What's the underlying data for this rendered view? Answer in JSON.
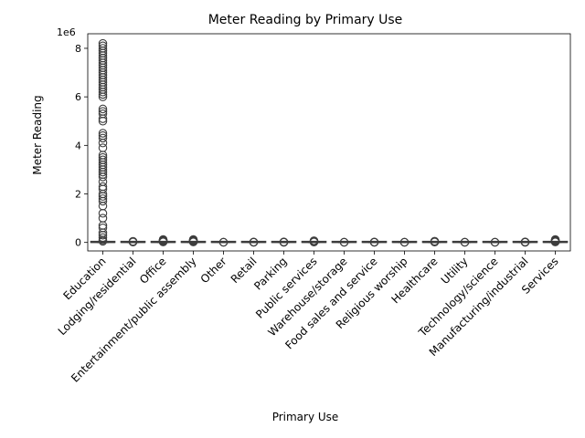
{
  "chart_data": {
    "type": "box",
    "title": "Meter Reading by Primary Use",
    "xlabel": "Primary Use",
    "ylabel": "Meter Reading",
    "y_offset_label": "1e6",
    "ylim": [
      -350000,
      8600000
    ],
    "yticks": [
      0,
      2000000,
      4000000,
      6000000,
      8000000
    ],
    "ytick_labels": [
      "0",
      "2",
      "4",
      "6",
      "8"
    ],
    "grid": false,
    "categories": [
      "Education",
      "Lodging/residential",
      "Office",
      "Entertainment/public assembly",
      "Other",
      "Retail",
      "Parking",
      "Public services",
      "Warehouse/storage",
      "Food sales and service",
      "Religious worship",
      "Healthcare",
      "Utility",
      "Technology/science",
      "Manufacturing/industrial",
      "Services"
    ],
    "series_color": "#4c72b0",
    "edge_color": "#3d3d3d",
    "boxes": [
      {
        "category": "Education",
        "q1": 0,
        "median": 0,
        "q3": 3000,
        "whisker_low": 0,
        "whisker_high": 7000,
        "outliers": [
          8200000,
          8100000,
          8000000,
          7900000,
          7800000,
          7700000,
          7600000,
          7500000,
          7400000,
          7300000,
          7200000,
          7100000,
          7000000,
          6900000,
          6800000,
          6700000,
          6600000,
          6500000,
          6400000,
          6300000,
          6200000,
          6100000,
          6000000,
          5500000,
          5400000,
          5300000,
          5100000,
          5000000,
          4500000,
          4400000,
          4300000,
          4100000,
          3900000,
          3600000,
          3500000,
          3400000,
          3300000,
          3200000,
          3100000,
          3000000,
          2900000,
          2800000,
          2700000,
          2500000,
          2300000,
          2200000,
          2000000,
          1900000,
          1800000,
          1700000,
          1500000,
          1200000,
          1000000,
          700000,
          600000,
          400000,
          300000,
          200000,
          100000,
          50000
        ]
      },
      {
        "category": "Lodging/residential",
        "q1": 0,
        "median": 0,
        "q3": 800,
        "whisker_low": 0,
        "whisker_high": 2000,
        "outliers": [
          15000,
          30000,
          45000
        ]
      },
      {
        "category": "Office",
        "q1": 0,
        "median": 0,
        "q3": 1500,
        "whisker_low": 0,
        "whisker_high": 3500,
        "outliers": [
          20000,
          40000,
          60000,
          80000,
          100000,
          120000
        ]
      },
      {
        "category": "Entertainment/public assembly",
        "q1": 0,
        "median": 0,
        "q3": 1500,
        "whisker_low": 0,
        "whisker_high": 3500,
        "outliers": [
          20000,
          40000,
          60000,
          80000,
          100000,
          120000
        ]
      },
      {
        "category": "Other",
        "q1": 0,
        "median": 0,
        "q3": 300,
        "whisker_low": 0,
        "whisker_high": 800,
        "outliers": [
          5000,
          10000
        ]
      },
      {
        "category": "Retail",
        "q1": 0,
        "median": 0,
        "q3": 300,
        "whisker_low": 0,
        "whisker_high": 800,
        "outliers": [
          5000,
          10000,
          15000
        ]
      },
      {
        "category": "Parking",
        "q1": 0,
        "median": 0,
        "q3": 300,
        "whisker_low": 0,
        "whisker_high": 800,
        "outliers": [
          5000,
          10000,
          20000
        ]
      },
      {
        "category": "Public services",
        "q1": 0,
        "median": 0,
        "q3": 800,
        "whisker_low": 0,
        "whisker_high": 2000,
        "outliers": [
          15000,
          30000,
          50000,
          70000
        ]
      },
      {
        "category": "Warehouse/storage",
        "q1": 0,
        "median": 0,
        "q3": 300,
        "whisker_low": 0,
        "whisker_high": 800,
        "outliers": [
          5000,
          10000
        ]
      },
      {
        "category": "Food sales and service",
        "q1": 0,
        "median": 0,
        "q3": 300,
        "whisker_low": 0,
        "whisker_high": 800,
        "outliers": [
          5000,
          10000,
          15000
        ]
      },
      {
        "category": "Religious worship",
        "q1": 0,
        "median": 0,
        "q3": 200,
        "whisker_low": 0,
        "whisker_high": 500,
        "outliers": [
          5000,
          10000
        ]
      },
      {
        "category": "Healthcare",
        "q1": 0,
        "median": 0,
        "q3": 800,
        "whisker_low": 0,
        "whisker_high": 2000,
        "outliers": [
          15000,
          30000,
          50000
        ]
      },
      {
        "category": "Utility",
        "q1": 0,
        "median": 0,
        "q3": 200,
        "whisker_low": 0,
        "whisker_high": 500,
        "outliers": [
          5000,
          10000
        ]
      },
      {
        "category": "Technology/science",
        "q1": 0,
        "median": 0,
        "q3": 300,
        "whisker_low": 0,
        "whisker_high": 800,
        "outliers": [
          5000,
          10000
        ]
      },
      {
        "category": "Manufacturing/industrial",
        "q1": 0,
        "median": 0,
        "q3": 300,
        "whisker_low": 0,
        "whisker_high": 800,
        "outliers": [
          5000,
          10000,
          20000
        ]
      },
      {
        "category": "Services",
        "q1": 0,
        "median": 0,
        "q3": 1000,
        "whisker_low": 0,
        "whisker_high": 2500,
        "outliers": [
          20000,
          40000,
          60000,
          80000,
          100000,
          120000
        ]
      }
    ]
  }
}
